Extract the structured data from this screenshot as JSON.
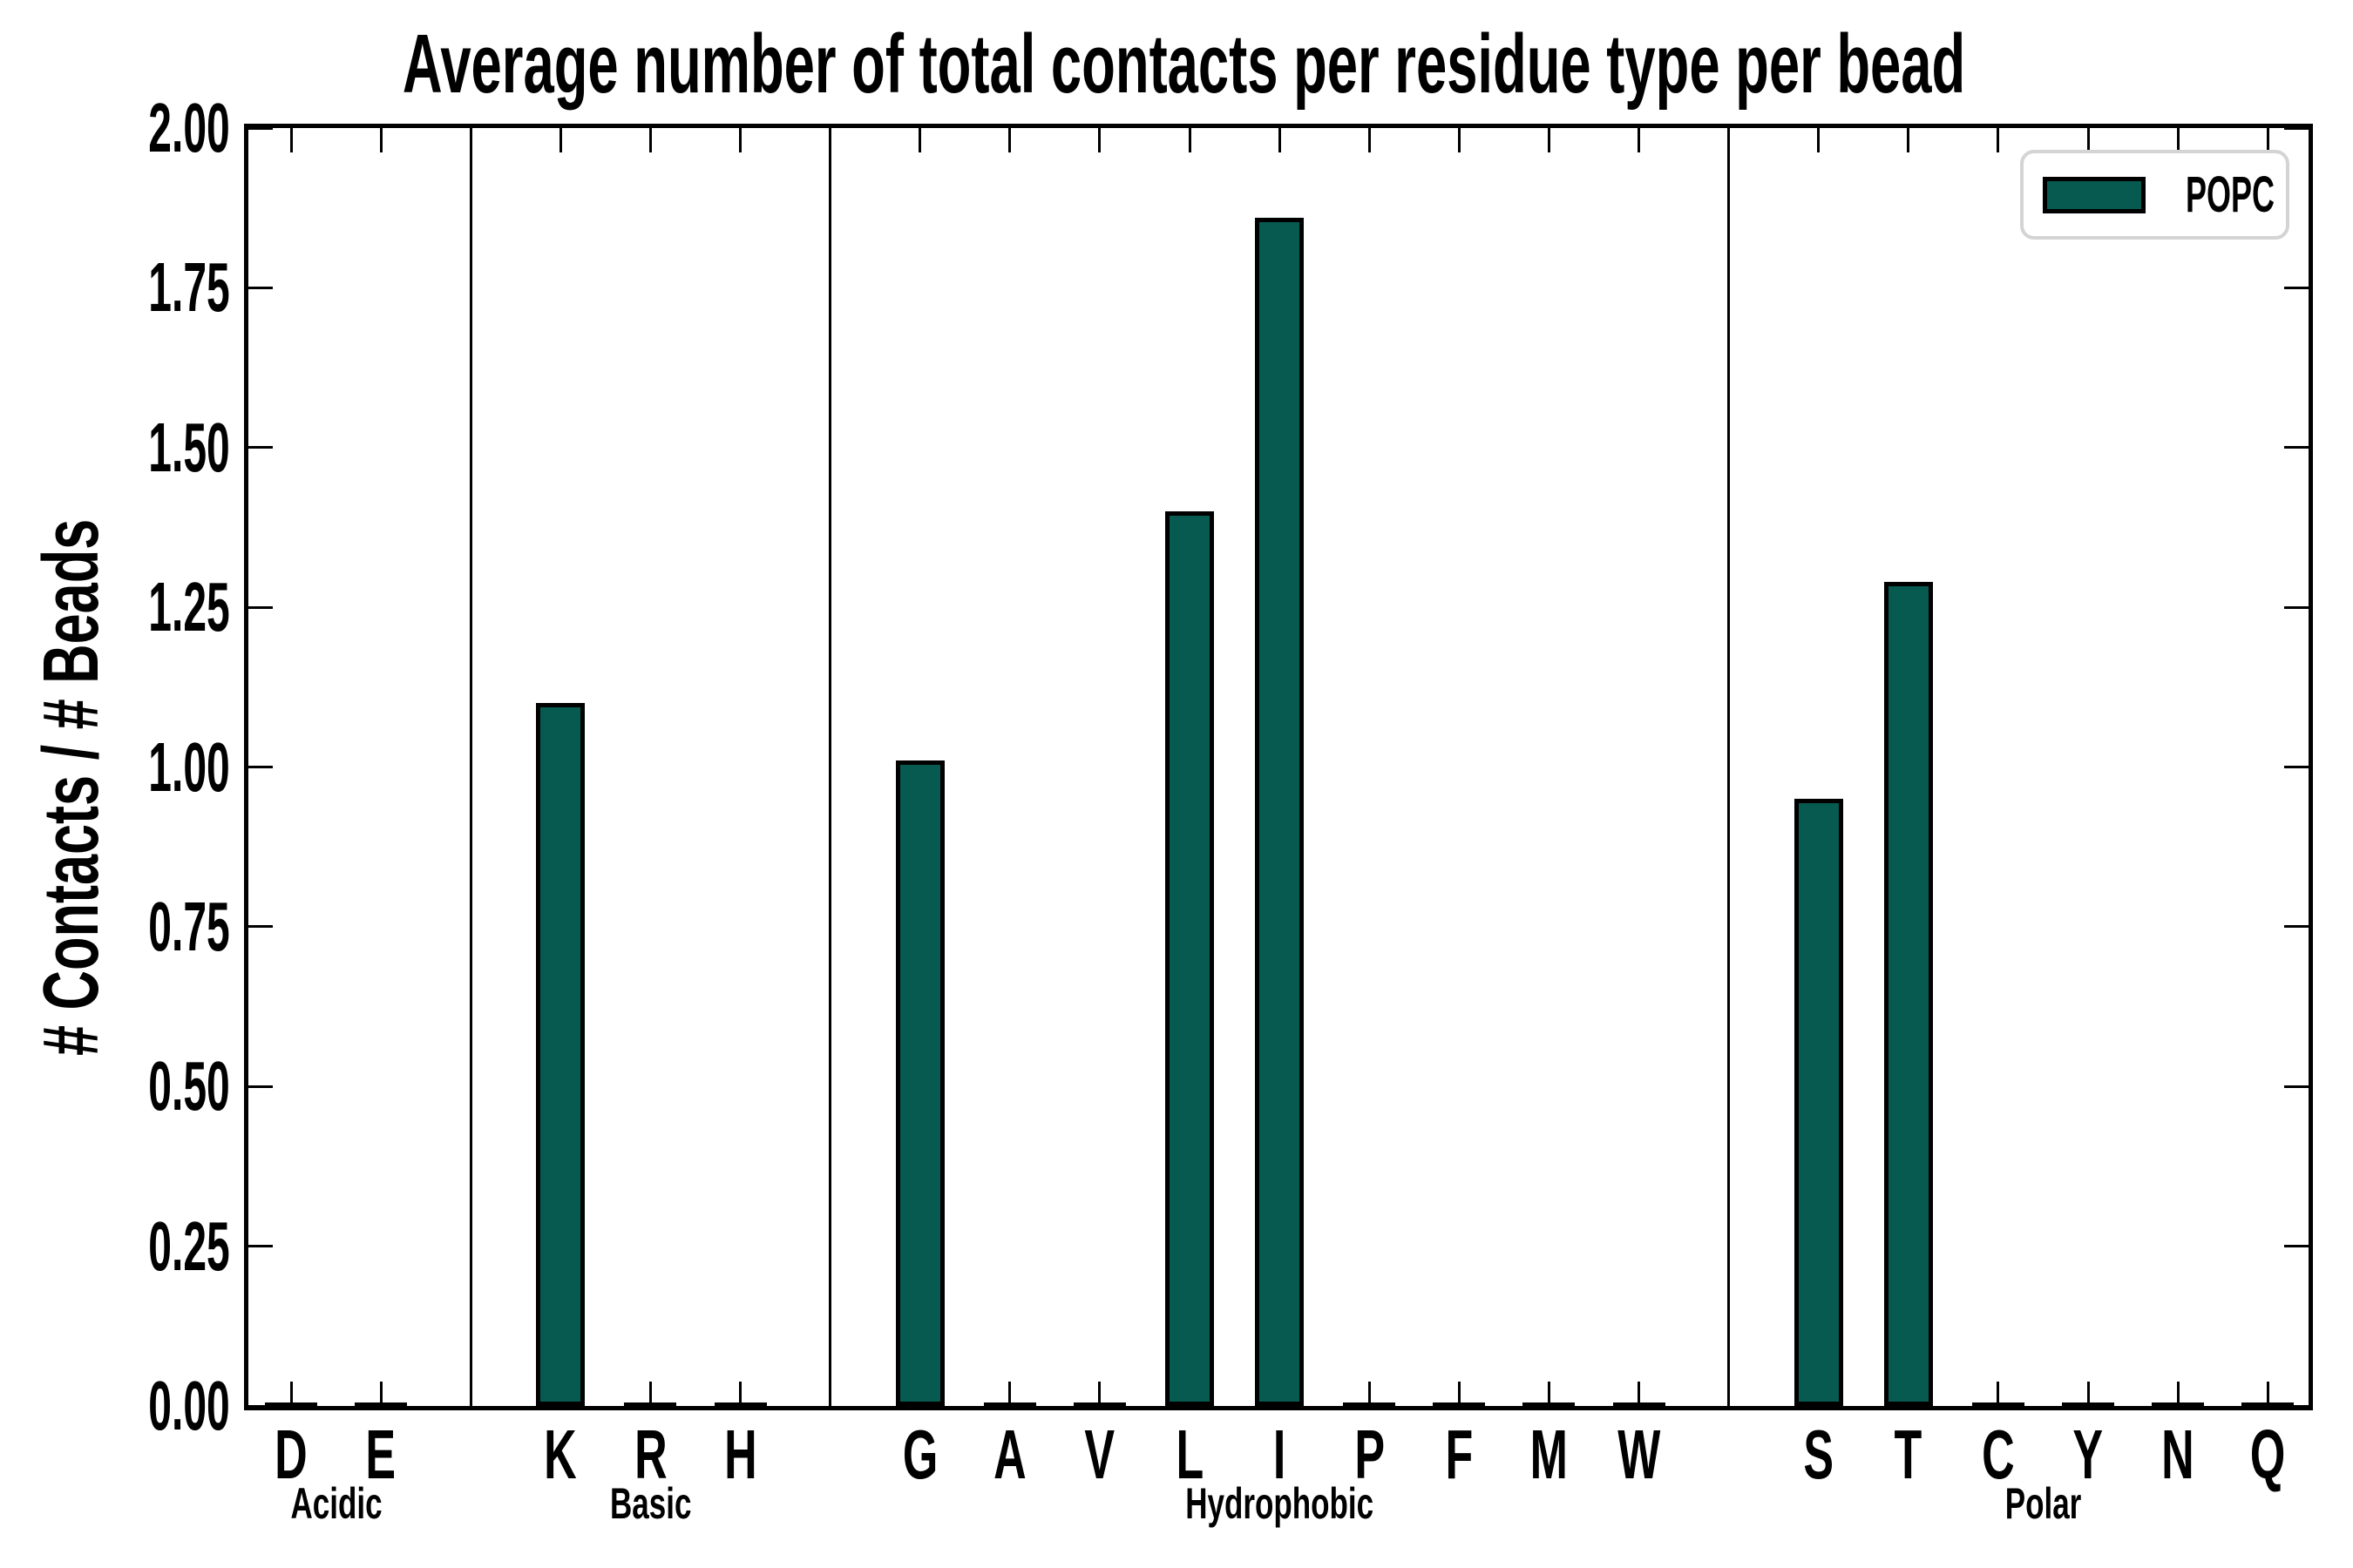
{
  "figure": {
    "title": "Average number of total contacts per residue type per bead",
    "background_color": "#ffffff",
    "text_color": "#000000"
  },
  "chart_data": {
    "type": "bar",
    "title": "Average number of total contacts per residue type per bead",
    "xlabel": "",
    "ylabel": "# Contacts / # Beads",
    "ylim": [
      0,
      2
    ],
    "ytick_step": 0.25,
    "ytick_labels": [
      "0.00",
      "0.25",
      "0.50",
      "0.75",
      "1.00",
      "1.25",
      "1.50",
      "1.75",
      "2.00"
    ],
    "grid": false,
    "bar_color": "#075A50",
    "bar_edge_color": "#000000",
    "groups": [
      {
        "label": "Acidic",
        "categories": [
          "D",
          "E"
        ],
        "values": [
          0,
          0
        ]
      },
      {
        "label": "Basic",
        "categories": [
          "K",
          "R",
          "H"
        ],
        "values": [
          1.1,
          0,
          0
        ]
      },
      {
        "label": "Hydrophobic",
        "categories": [
          "G",
          "A",
          "V",
          "L",
          "I",
          "P",
          "F",
          "M",
          "W"
        ],
        "values": [
          1.01,
          0,
          0,
          1.4,
          1.86,
          0,
          0,
          0,
          0
        ]
      },
      {
        "label": "Polar",
        "categories": [
          "S",
          "T",
          "C",
          "Y",
          "N",
          "Q"
        ],
        "values": [
          0.95,
          1.29,
          0,
          0,
          0,
          0
        ]
      }
    ],
    "legend": {
      "position": "upper right",
      "entries": [
        {
          "label": "POPC",
          "color": "#075A50"
        }
      ]
    }
  }
}
